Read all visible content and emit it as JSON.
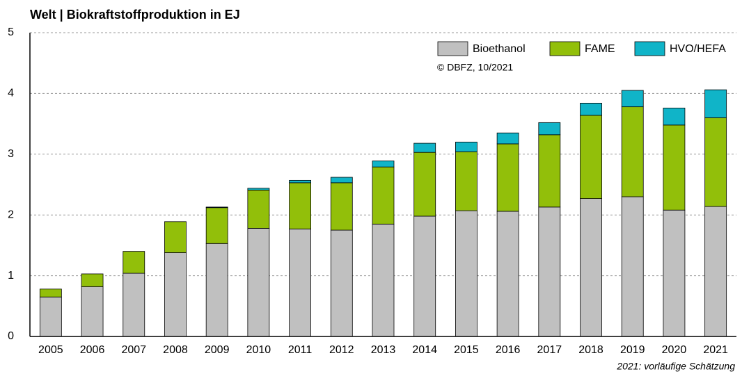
{
  "chart_data": {
    "type": "stacked_bar",
    "title": "Welt | Biokraftstoffproduktion in EJ",
    "source": "© DBFZ, 10/2021",
    "note": "2021: vorläufige Schätzung",
    "categories": [
      "2005",
      "2006",
      "2007",
      "2008",
      "2009",
      "2010",
      "2011",
      "2012",
      "2013",
      "2014",
      "2015",
      "2016",
      "2017",
      "2018",
      "2019",
      "2020",
      "2021"
    ],
    "series": [
      {
        "name": "Bioethanol",
        "color": "#c0c0c0",
        "values": [
          0.65,
          0.82,
          1.04,
          1.38,
          1.53,
          1.78,
          1.77,
          1.75,
          1.85,
          1.98,
          2.07,
          2.06,
          2.13,
          2.27,
          2.3,
          2.08,
          2.14
        ]
      },
      {
        "name": "FAME",
        "color": "#92bf0a",
        "values": [
          0.13,
          0.21,
          0.36,
          0.51,
          0.59,
          0.63,
          0.76,
          0.78,
          0.94,
          1.05,
          0.97,
          1.11,
          1.19,
          1.37,
          1.48,
          1.4,
          1.46
        ]
      },
      {
        "name": "HVO/HEFA",
        "color": "#10b4c8",
        "values": [
          0,
          0,
          0,
          0,
          0.01,
          0.03,
          0.04,
          0.09,
          0.1,
          0.15,
          0.16,
          0.18,
          0.2,
          0.2,
          0.27,
          0.28,
          0.46
        ]
      }
    ],
    "ylim": [
      0,
      5
    ],
    "yticks": [
      0,
      1,
      2,
      3,
      4,
      5
    ],
    "grid": true,
    "legend": "top-right"
  }
}
